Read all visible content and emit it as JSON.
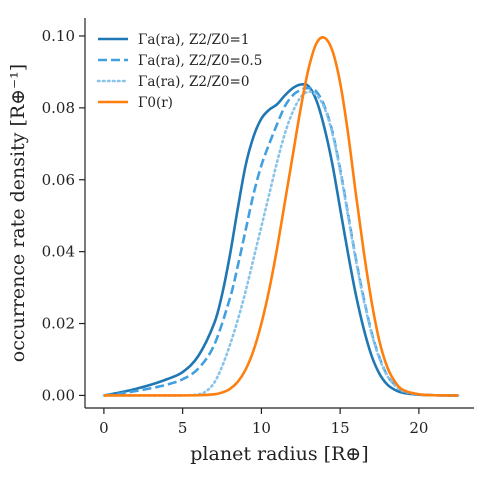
{
  "chart_data": {
    "type": "line",
    "xlabel": "planet radius [R⊕]",
    "ylabel": "occurrence rate density [R⊕⁻¹]",
    "xlim": [
      -1.2,
      23.5
    ],
    "ylim": [
      -0.0035,
      0.105
    ],
    "x_ticks": [
      0,
      5,
      10,
      15,
      20
    ],
    "y_ticks": [
      0.0,
      0.02,
      0.04,
      0.06,
      0.08,
      0.1
    ],
    "x_tick_labels": [
      "0",
      "5",
      "10",
      "15",
      "20"
    ],
    "y_tick_labels": [
      "0.00",
      "0.02",
      "0.04",
      "0.06",
      "0.08",
      "0.10"
    ],
    "grid": false,
    "legend_position": "top-left",
    "series": [
      {
        "name": "Γa(ra), Z2/Z0=1",
        "color": "#1f77b4",
        "style": "solid",
        "x": [
          0,
          1,
          2,
          3,
          4,
          5,
          6,
          7,
          7.5,
          8,
          8.5,
          9,
          9.5,
          10,
          10.5,
          11,
          11.5,
          12,
          12.5,
          13,
          13.5,
          14,
          14.5,
          15,
          15.5,
          16,
          16.5,
          17,
          17.5,
          18,
          18.5,
          19,
          20,
          21,
          22,
          22.5
        ],
        "y": [
          0,
          0.0008,
          0.0018,
          0.003,
          0.0045,
          0.0065,
          0.011,
          0.02,
          0.028,
          0.039,
          0.052,
          0.064,
          0.072,
          0.077,
          0.0795,
          0.081,
          0.0835,
          0.0855,
          0.0865,
          0.086,
          0.082,
          0.0745,
          0.0645,
          0.052,
          0.0395,
          0.028,
          0.0185,
          0.011,
          0.006,
          0.003,
          0.0015,
          0.0007,
          0.0002,
          5e-05,
          0,
          0
        ]
      },
      {
        "name": "Γa(ra), Z2/Z0=0.5",
        "color": "#42a0e0",
        "style": "dashed",
        "x": [
          0,
          1,
          2,
          3,
          4,
          5,
          6,
          7,
          8,
          8.5,
          9,
          9.5,
          10,
          10.5,
          11,
          11.5,
          12,
          12.5,
          13,
          13.5,
          14,
          14.5,
          15,
          15.5,
          16,
          16.5,
          17,
          17.5,
          18,
          18.5,
          19,
          20,
          21,
          22,
          22.5
        ],
        "y": [
          0,
          0.0005,
          0.0012,
          0.002,
          0.003,
          0.0045,
          0.0075,
          0.014,
          0.027,
          0.036,
          0.046,
          0.056,
          0.064,
          0.07,
          0.0755,
          0.0805,
          0.0835,
          0.085,
          0.0855,
          0.0845,
          0.0805,
          0.0735,
          0.063,
          0.0505,
          0.038,
          0.027,
          0.0175,
          0.0105,
          0.0055,
          0.0028,
          0.0012,
          0.0003,
          5e-05,
          0,
          0
        ]
      },
      {
        "name": "Γa(ra), Z2/Z0=0",
        "color": "#89c3ea",
        "style": "dotted",
        "x": [
          0,
          2,
          4,
          5,
          6,
          6.5,
          7,
          7.5,
          8,
          8.5,
          9,
          9.5,
          10,
          10.5,
          11,
          11.5,
          12,
          12.5,
          13,
          13.5,
          14,
          14.5,
          15,
          15.5,
          16,
          16.5,
          17,
          17.5,
          18,
          18.5,
          19,
          20,
          21,
          22,
          22.5
        ],
        "y": [
          0,
          0,
          0,
          0,
          0.0003,
          0.0012,
          0.0035,
          0.008,
          0.014,
          0.021,
          0.029,
          0.038,
          0.047,
          0.056,
          0.065,
          0.073,
          0.079,
          0.083,
          0.0845,
          0.0835,
          0.08,
          0.073,
          0.0625,
          0.05,
          0.0375,
          0.0265,
          0.0172,
          0.0102,
          0.0054,
          0.0027,
          0.0012,
          0.0003,
          5e-05,
          0,
          0
        ]
      },
      {
        "name": "Γ0(r)",
        "color": "#ff7f0e",
        "style": "solid",
        "x": [
          0,
          2,
          4,
          6,
          7,
          7.5,
          8,
          8.5,
          9,
          9.5,
          10,
          10.5,
          11,
          11.5,
          12,
          12.5,
          13,
          13.5,
          14,
          14.5,
          15,
          15.5,
          16,
          16.5,
          17,
          17.5,
          18,
          18.5,
          19,
          20,
          21,
          22,
          22.5
        ],
        "y": [
          0,
          0,
          0,
          5e-05,
          0.0003,
          0.0008,
          0.0018,
          0.0038,
          0.0072,
          0.0125,
          0.02,
          0.0295,
          0.041,
          0.054,
          0.067,
          0.08,
          0.091,
          0.098,
          0.0995,
          0.096,
          0.087,
          0.073,
          0.056,
          0.04,
          0.026,
          0.015,
          0.0078,
          0.0037,
          0.0015,
          0.0003,
          5e-05,
          0,
          0
        ]
      }
    ]
  }
}
